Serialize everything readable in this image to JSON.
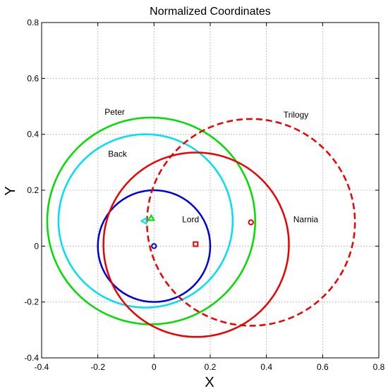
{
  "chart_data": {
    "type": "scatter",
    "title": "Normalized Coordinates",
    "xlabel": "X",
    "ylabel": "Y",
    "xlim": [
      -0.4,
      0.8
    ],
    "ylim": [
      -0.4,
      0.8
    ],
    "grid": true,
    "grid_style": "dotted",
    "x_ticks": [
      -0.4,
      -0.2,
      0,
      0.2,
      0.4,
      0.6,
      0.8
    ],
    "y_ticks": [
      -0.4,
      -0.2,
      0,
      0.2,
      0.4,
      0.6,
      0.8
    ],
    "x_tick_labels": [
      "-0.4",
      "-0.2",
      "0",
      "0.2",
      "0.4",
      "0.6",
      "0.8"
    ],
    "y_tick_labels": [
      "-0.4",
      "-0.2",
      "0",
      "0.2",
      "0.4",
      "0.6",
      "0.8"
    ],
    "circles": [
      {
        "cx": 0.0,
        "cy": 0.0,
        "r": 0.2,
        "color": "#0000dd",
        "dashed": false
      },
      {
        "cx": -0.03,
        "cy": 0.09,
        "r": 0.31,
        "color": "#00e0ee",
        "dashed": false
      },
      {
        "cx": -0.01,
        "cy": 0.09,
        "r": 0.37,
        "color": "#00dd00",
        "dashed": false
      },
      {
        "cx": 0.15,
        "cy": 0.005,
        "r": 0.33,
        "color": "#ee0000",
        "dashed": false
      },
      {
        "cx": 0.345,
        "cy": 0.085,
        "r": 0.37,
        "color": "#ee0000",
        "dashed": true
      }
    ],
    "markers": [
      {
        "x": 0.0,
        "y": 0.0,
        "shape": "circle",
        "color": "#0000dd"
      },
      {
        "x": -0.035,
        "y": 0.09,
        "shape": "triangle-left",
        "color": "#00e0ee"
      },
      {
        "x": -0.01,
        "y": 0.1,
        "shape": "triangle-up",
        "color": "#00dd00"
      },
      {
        "x": 0.148,
        "y": 0.007,
        "shape": "square",
        "color": "#ee0000"
      },
      {
        "x": 0.345,
        "y": 0.085,
        "shape": "circle",
        "color": "#ee0000"
      }
    ],
    "annotations": [
      {
        "text": "Peter",
        "x": -0.14,
        "y": 0.48
      },
      {
        "text": "Back",
        "x": -0.13,
        "y": 0.33
      },
      {
        "text": "Lord",
        "x": 0.13,
        "y": 0.095
      },
      {
        "text": "Narnia",
        "x": 0.54,
        "y": 0.095
      },
      {
        "text": "Trilogy",
        "x": 0.505,
        "y": 0.47
      }
    ]
  }
}
